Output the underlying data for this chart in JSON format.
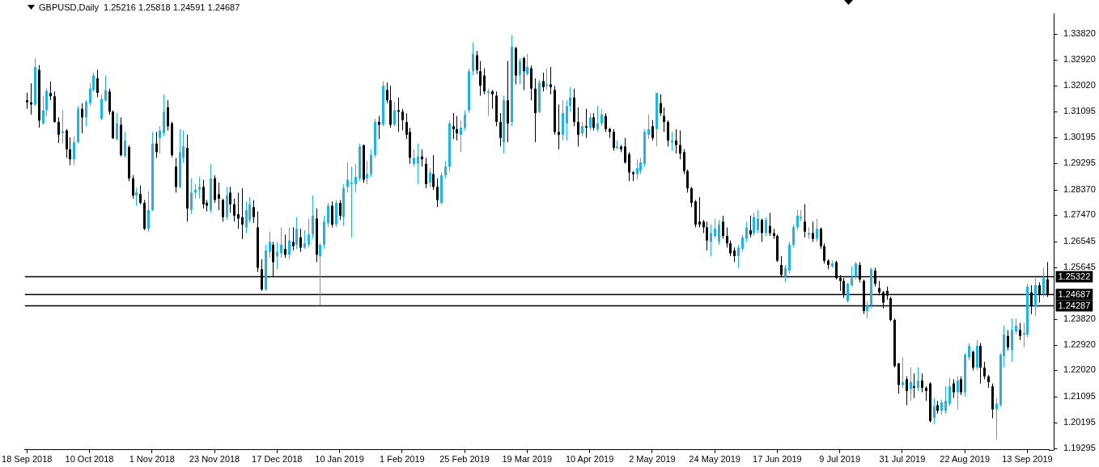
{
  "chart_data": {
    "type": "candlestick",
    "title": "GBPUSD,Daily  1.25216 1.25818 1.24591 1.24687",
    "categories": [
      "18 Sep 2018",
      null,
      null,
      null,
      null,
      null,
      null,
      null,
      null,
      null,
      null,
      null,
      null,
      null,
      null,
      null,
      "10 Oct 2018",
      null,
      null,
      null,
      null,
      null,
      null,
      null,
      null,
      null,
      null,
      null,
      null,
      null,
      null,
      null,
      "1 Nov 2018",
      null,
      null,
      null,
      null,
      null,
      null,
      null,
      null,
      null,
      null,
      null,
      null,
      null,
      null,
      null,
      "23 Nov 2018",
      null,
      null,
      null,
      null,
      null,
      null,
      null,
      null,
      null,
      null,
      null,
      null,
      null,
      null,
      null,
      "17 Dec 2018",
      null,
      null,
      null,
      null,
      null,
      null,
      null,
      null,
      null,
      null,
      null,
      null,
      null,
      null,
      null,
      "10 Jan 2019",
      null,
      null,
      null,
      null,
      null,
      null,
      null,
      null,
      null,
      null,
      null,
      null,
      null,
      null,
      null,
      "1 Feb 2019",
      null,
      null,
      null,
      null,
      null,
      null,
      null,
      null,
      null,
      null,
      null,
      null,
      null,
      null,
      null,
      "25 Feb 2019",
      null,
      null,
      null,
      null,
      null,
      null,
      null,
      null,
      null,
      null,
      null,
      null,
      null,
      null,
      null,
      "19 Mar 2019",
      null,
      null,
      null,
      null,
      null,
      null,
      null,
      null,
      null,
      null,
      null,
      null,
      null,
      null,
      null,
      "10 Apr 2019",
      null,
      null,
      null,
      null,
      null,
      null,
      null,
      null,
      null,
      null,
      null,
      null,
      null,
      null,
      null,
      "2 May 2019",
      null,
      null,
      null,
      null,
      null,
      null,
      null,
      null,
      null,
      null,
      null,
      null,
      null,
      null,
      null,
      "24 May 2019",
      null,
      null,
      null,
      null,
      null,
      null,
      null,
      null,
      null,
      null,
      null,
      null,
      null,
      null,
      null,
      "17 Jun 2019",
      null,
      null,
      null,
      null,
      null,
      null,
      null,
      null,
      null,
      null,
      null,
      null,
      null,
      null,
      null,
      "9 Jul 2019",
      null,
      null,
      null,
      null,
      null,
      null,
      null,
      null,
      null,
      null,
      null,
      null,
      null,
      null,
      null,
      "31 Jul 2019",
      null,
      null,
      null,
      null,
      null,
      null,
      null,
      null,
      null,
      null,
      null,
      null,
      null,
      null,
      null,
      "22 Aug 2019",
      null,
      null,
      null,
      null,
      null,
      null,
      null,
      null,
      null,
      null,
      null,
      null,
      null,
      null,
      null,
      "13 Sep 2019",
      null,
      null,
      null,
      null,
      null
    ],
    "ohlc": [
      [
        1.315,
        1.3177,
        1.312,
        1.3143
      ],
      [
        1.3143,
        1.321,
        1.31,
        1.3135
      ],
      [
        1.3135,
        1.3298,
        1.313,
        1.3267
      ],
      [
        1.3257,
        1.3274,
        1.3054,
        1.3079
      ],
      [
        1.3069,
        1.3166,
        1.3064,
        1.3115
      ],
      [
        1.3115,
        1.3193,
        1.3095,
        1.3183
      ],
      [
        1.3176,
        1.3216,
        1.315,
        1.3164
      ],
      [
        1.3164,
        1.3181,
        1.3071,
        1.3074
      ],
      [
        1.3074,
        1.309,
        1.3,
        1.3029
      ],
      [
        1.3036,
        1.3115,
        1.2998,
        1.3041
      ],
      [
        1.3044,
        1.3049,
        1.2948,
        1.2978
      ],
      [
        1.2978,
        1.302,
        1.2922,
        1.2943
      ],
      [
        1.2943,
        1.3024,
        1.2922,
        1.3003
      ],
      [
        1.3003,
        1.313,
        1.2999,
        1.312
      ],
      [
        1.312,
        1.314,
        1.3034,
        1.309
      ],
      [
        1.309,
        1.315,
        1.3059,
        1.3145
      ],
      [
        1.314,
        1.3211,
        1.313,
        1.3191
      ],
      [
        1.3186,
        1.3247,
        1.3181,
        1.3237
      ],
      [
        1.3227,
        1.3257,
        1.3161,
        1.3176
      ],
      [
        1.3085,
        1.3171,
        1.308,
        1.3155
      ],
      [
        1.315,
        1.3237,
        1.3145,
        1.3186
      ],
      [
        1.3181,
        1.3191,
        1.31,
        1.311
      ],
      [
        1.311,
        1.3115,
        1.3014,
        1.3017
      ],
      [
        1.3014,
        1.3105,
        1.3008,
        1.3069
      ],
      [
        1.3064,
        1.309,
        1.2953,
        1.2958
      ],
      [
        1.2955,
        1.3039,
        1.2948,
        1.3008
      ],
      [
        1.2986,
        1.2993,
        1.2866,
        1.2876
      ],
      [
        1.2876,
        1.2887,
        1.2805,
        1.2816
      ],
      [
        1.2816,
        1.2843,
        1.278,
        1.2828
      ],
      [
        1.2821,
        1.2851,
        1.2785,
        1.279
      ],
      [
        1.279,
        1.28,
        1.2694,
        1.2699
      ],
      [
        1.2699,
        1.2831,
        1.2689,
        1.2765
      ],
      [
        1.2765,
        1.3039,
        1.276,
        1.2998
      ],
      [
        1.2998,
        1.3039,
        1.2948,
        1.2968
      ],
      [
        1.3018,
        1.3059,
        1.2963,
        1.3044
      ],
      [
        1.3034,
        1.3171,
        1.3024,
        1.311
      ],
      [
        1.3125,
        1.315,
        1.3044,
        1.3059
      ],
      [
        1.3069,
        1.3075,
        1.295,
        1.2958
      ],
      [
        1.2917,
        1.2948,
        1.2826,
        1.2846
      ],
      [
        1.2846,
        1.3049,
        1.2841,
        1.2968
      ],
      [
        1.2948,
        1.3044,
        1.293,
        1.2988
      ],
      [
        1.2983,
        1.3029,
        1.2724,
        1.277
      ],
      [
        1.2765,
        1.2876,
        1.275,
        1.2826
      ],
      [
        1.2826,
        1.2856,
        1.2805,
        1.2836
      ],
      [
        1.2836,
        1.2881,
        1.2805,
        1.2846
      ],
      [
        1.2846,
        1.2871,
        1.277,
        1.2785
      ],
      [
        1.279,
        1.28,
        1.276,
        1.278
      ],
      [
        1.2765,
        1.2927,
        1.2755,
        1.2876
      ],
      [
        1.2876,
        1.2887,
        1.279,
        1.28
      ],
      [
        1.282,
        1.2861,
        1.2765,
        1.2805
      ],
      [
        1.28,
        1.2805,
        1.2724,
        1.274
      ],
      [
        1.274,
        1.2846,
        1.273,
        1.2816
      ],
      [
        1.2826,
        1.2846,
        1.2755,
        1.2785
      ],
      [
        1.2785,
        1.2805,
        1.2724,
        1.2745
      ],
      [
        1.275,
        1.2826,
        1.2699,
        1.2735
      ],
      [
        1.274,
        1.2841,
        1.2663,
        1.2714
      ],
      [
        1.2704,
        1.2795,
        1.2684,
        1.2765
      ],
      [
        1.2729,
        1.281,
        1.272,
        1.2785
      ],
      [
        1.2775,
        1.28,
        1.272,
        1.274
      ],
      [
        1.2704,
        1.276,
        1.2547,
        1.2562
      ],
      [
        1.2557,
        1.2592,
        1.2481,
        1.2486
      ],
      [
        1.2486,
        1.2643,
        1.2481,
        1.2623
      ],
      [
        1.2618,
        1.2689,
        1.2597,
        1.2653
      ],
      [
        1.2643,
        1.2653,
        1.2531,
        1.2582
      ],
      [
        1.2602,
        1.2653,
        1.2557,
        1.2618
      ],
      [
        1.2613,
        1.2704,
        1.2597,
        1.2643
      ],
      [
        1.2628,
        1.2679,
        1.2597,
        1.2608
      ],
      [
        1.2608,
        1.2704,
        1.2592,
        1.2658
      ],
      [
        1.2653,
        1.2704,
        1.2623,
        1.2638
      ],
      [
        1.2643,
        1.274,
        1.2628,
        1.2699
      ],
      [
        1.2669,
        1.2699,
        1.2618,
        1.2633
      ],
      [
        1.2633,
        1.2694,
        1.2628,
        1.2648
      ],
      [
        1.2643,
        1.2735,
        1.2633,
        1.2679
      ],
      [
        1.2679,
        1.2816,
        1.2664,
        1.2745
      ],
      [
        1.2735,
        1.277,
        1.2582,
        1.2608
      ],
      [
        1.2603,
        1.2648,
        1.243,
        1.2643
      ],
      [
        1.2643,
        1.2745,
        1.2628,
        1.2724
      ],
      [
        1.2719,
        1.279,
        1.2704,
        1.278
      ],
      [
        1.278,
        1.2795,
        1.2704,
        1.2714
      ],
      [
        1.2714,
        1.28,
        1.2704,
        1.279
      ],
      [
        1.279,
        1.28,
        1.273,
        1.2745
      ],
      [
        1.274,
        1.2856,
        1.2709,
        1.2841
      ],
      [
        1.2846,
        1.2932,
        1.2826,
        1.2871
      ],
      [
        1.2856,
        1.2917,
        1.2668,
        1.2861
      ],
      [
        1.2856,
        1.2927,
        1.2826,
        1.2881
      ],
      [
        1.2876,
        1.2998,
        1.2866,
        1.2988
      ],
      [
        1.2993,
        1.2993,
        1.286,
        1.2871
      ],
      [
        1.2876,
        1.2937,
        1.2855,
        1.2891
      ],
      [
        1.2891,
        1.2978,
        1.288,
        1.2958
      ],
      [
        1.2958,
        1.3085,
        1.2948,
        1.3074
      ],
      [
        1.3074,
        1.3095,
        1.3014,
        1.3064
      ],
      [
        1.3064,
        1.3217,
        1.3059,
        1.3201
      ],
      [
        1.3186,
        1.3212,
        1.314,
        1.315
      ],
      [
        1.315,
        1.3201,
        1.3054,
        1.3064
      ],
      [
        1.3064,
        1.3145,
        1.3059,
        1.3115
      ],
      [
        1.3115,
        1.316,
        1.3039,
        1.311
      ],
      [
        1.311,
        1.312,
        1.3044,
        1.308
      ],
      [
        1.3074,
        1.3105,
        1.3014,
        1.3029
      ],
      [
        1.3039,
        1.3054,
        1.2927,
        1.2948
      ],
      [
        1.2927,
        1.2978,
        1.2917,
        1.2948
      ],
      [
        1.2927,
        1.2998,
        1.2856,
        1.2953
      ],
      [
        1.2953,
        1.2978,
        1.2917,
        1.2943
      ],
      [
        1.2927,
        1.2948,
        1.2841,
        1.2856
      ],
      [
        1.2861,
        1.2912,
        1.2846,
        1.2897
      ],
      [
        1.2891,
        1.2958,
        1.2836,
        1.2846
      ],
      [
        1.2846,
        1.2876,
        1.2775,
        1.28
      ],
      [
        1.279,
        1.2897,
        1.2785,
        1.2887
      ],
      [
        1.2887,
        1.2937,
        1.2876,
        1.2917
      ],
      [
        1.2917,
        1.308,
        1.29,
        1.3069
      ],
      [
        1.3059,
        1.3105,
        1.3014,
        1.3049
      ],
      [
        1.3049,
        1.3095,
        1.3009,
        1.3034
      ],
      [
        1.3029,
        1.308,
        1.2968,
        1.3054
      ],
      [
        1.3054,
        1.3115,
        1.3044,
        1.31
      ],
      [
        1.3115,
        1.3262,
        1.3105,
        1.3252
      ],
      [
        1.3252,
        1.3353,
        1.3237,
        1.3313
      ],
      [
        1.3308,
        1.3323,
        1.3242,
        1.3257
      ],
      [
        1.3252,
        1.3288,
        1.3166,
        1.3201
      ],
      [
        1.3237,
        1.3262,
        1.3171,
        1.3181
      ],
      [
        1.3176,
        1.3191,
        1.3095,
        1.3181
      ],
      [
        1.3181,
        1.3186,
        1.312,
        1.3171
      ],
      [
        1.3166,
        1.3181,
        1.3059,
        1.3074
      ],
      [
        1.3074,
        1.3105,
        1.2988,
        1.3018
      ],
      [
        1.3003,
        1.3166,
        1.2963,
        1.315
      ],
      [
        1.315,
        1.3288,
        1.3003,
        1.3069
      ],
      [
        1.3074,
        1.3379,
        1.3059,
        1.3338
      ],
      [
        1.3333,
        1.3338,
        1.3206,
        1.3237
      ],
      [
        1.3237,
        1.3298,
        1.3206,
        1.3288
      ],
      [
        1.3298,
        1.3303,
        1.3186,
        1.3252
      ],
      [
        1.3242,
        1.3313,
        1.3237,
        1.3267
      ],
      [
        1.3262,
        1.3272,
        1.315,
        1.3191
      ],
      [
        1.3191,
        1.3227,
        1.3003,
        1.3105
      ],
      [
        1.311,
        1.3222,
        1.3105,
        1.3212
      ],
      [
        1.3217,
        1.3247,
        1.3181,
        1.3196
      ],
      [
        1.3201,
        1.3262,
        1.3186,
        1.3206
      ],
      [
        1.3206,
        1.3267,
        1.3171,
        1.3196
      ],
      [
        1.3186,
        1.3201,
        1.3029,
        1.3039
      ],
      [
        1.3039,
        1.3135,
        1.2978,
        1.3029
      ],
      [
        1.3029,
        1.315,
        1.3009,
        1.3105
      ],
      [
        1.3069,
        1.315,
        1.3009,
        1.313
      ],
      [
        1.313,
        1.3196,
        1.311,
        1.316
      ],
      [
        1.316,
        1.3191,
        1.3059,
        1.3074
      ],
      [
        1.3074,
        1.3125,
        1.2988,
        1.3029
      ],
      [
        1.3034,
        1.3074,
        1.3024,
        1.3059
      ],
      [
        1.3059,
        1.312,
        1.3018,
        1.3054
      ],
      [
        1.3054,
        1.3105,
        1.3044,
        1.309
      ],
      [
        1.309,
        1.3105,
        1.3044,
        1.3054
      ],
      [
        1.3049,
        1.313,
        1.3039,
        1.3069
      ],
      [
        1.3069,
        1.312,
        1.3059,
        1.31
      ],
      [
        1.3095,
        1.3105,
        1.3039,
        1.3049
      ],
      [
        1.3049,
        1.3054,
        1.3018,
        1.3039
      ],
      [
        1.3039,
        1.3049,
        1.2973,
        1.2983
      ],
      [
        1.2983,
        1.3009,
        1.2978,
        1.2988
      ],
      [
        1.2988,
        1.2993,
        1.2968,
        1.2978
      ],
      [
        1.2988,
        1.3018,
        1.2927,
        1.2932
      ],
      [
        1.2961,
        1.2968,
        1.2866,
        1.2897
      ],
      [
        1.2897,
        1.2902,
        1.2866,
        1.2891
      ],
      [
        1.2891,
        1.2942,
        1.2871,
        1.2912
      ],
      [
        1.2902,
        1.2948,
        1.2891,
        1.2932
      ],
      [
        1.2927,
        1.3049,
        1.2917,
        1.3039
      ],
      [
        1.3029,
        1.31,
        1.3014,
        1.3049
      ],
      [
        1.3059,
        1.308,
        1.3009,
        1.3018
      ],
      [
        1.3049,
        1.3176,
        1.2988,
        1.3176
      ],
      [
        1.314,
        1.3171,
        1.3095,
        1.3105
      ],
      [
        1.3095,
        1.3125,
        1.3039,
        1.3074
      ],
      [
        1.3074,
        1.308,
        1.2988,
        1.3009
      ],
      [
        1.3003,
        1.3039,
        1.2973,
        1.3009
      ],
      [
        1.3009,
        1.3049,
        1.2963,
        1.2993
      ],
      [
        1.2993,
        1.3044,
        1.2943,
        1.2963
      ],
      [
        1.2968,
        1.2978,
        1.2891,
        1.2902
      ],
      [
        1.2902,
        1.2907,
        1.2826,
        1.2841
      ],
      [
        1.2841,
        1.2846,
        1.2775,
        1.279
      ],
      [
        1.2795,
        1.28,
        1.2704,
        1.2714
      ],
      [
        1.2724,
        1.281,
        1.2704,
        1.2714
      ],
      [
        1.2724,
        1.273,
        1.2684,
        1.2704
      ],
      [
        1.2704,
        1.2724,
        1.2623,
        1.2658
      ],
      [
        1.2653,
        1.2714,
        1.2603,
        1.2684
      ],
      [
        1.2674,
        1.2735,
        1.2664,
        1.2699
      ],
      [
        1.2653,
        1.273,
        1.2643,
        1.2714
      ],
      [
        1.2724,
        1.2745,
        1.2664,
        1.2674
      ],
      [
        1.2674,
        1.2704,
        1.2633,
        1.2648
      ],
      [
        1.2648,
        1.2658,
        1.2603,
        1.2613
      ],
      [
        1.2623,
        1.2633,
        1.2582,
        1.2603
      ],
      [
        1.2603,
        1.2643,
        1.2562,
        1.2633
      ],
      [
        1.2628,
        1.2679,
        1.2618,
        1.2669
      ],
      [
        1.2664,
        1.2724,
        1.2653,
        1.2704
      ],
      [
        1.2694,
        1.2745,
        1.2669,
        1.2679
      ],
      [
        1.2684,
        1.2755,
        1.2674,
        1.274
      ],
      [
        1.2694,
        1.2765,
        1.2684,
        1.2735
      ],
      [
        1.273,
        1.2735,
        1.2653,
        1.2684
      ],
      [
        1.2684,
        1.274,
        1.2674,
        1.273
      ],
      [
        1.2709,
        1.2755,
        1.2674,
        1.2684
      ],
      [
        1.2684,
        1.2699,
        1.2664,
        1.2674
      ],
      [
        1.2674,
        1.2679,
        1.2582,
        1.2587
      ],
      [
        1.2572,
        1.2603,
        1.2532,
        1.2537
      ],
      [
        1.2531,
        1.2572,
        1.2511,
        1.2562
      ],
      [
        1.2552,
        1.2653,
        1.2542,
        1.2643
      ],
      [
        1.2643,
        1.2714,
        1.2633,
        1.2704
      ],
      [
        1.2704,
        1.2765,
        1.2694,
        1.2745
      ],
      [
        1.2735,
        1.2765,
        1.2724,
        1.274
      ],
      [
        1.2724,
        1.2785,
        1.2669,
        1.2689
      ],
      [
        1.2679,
        1.2704,
        1.2664,
        1.2684
      ],
      [
        1.2684,
        1.2724,
        1.2653,
        1.2664
      ],
      [
        1.2664,
        1.2735,
        1.2653,
        1.2699
      ],
      [
        1.2699,
        1.2704,
        1.2628,
        1.2638
      ],
      [
        1.2638,
        1.2648,
        1.2577,
        1.2587
      ],
      [
        1.2587,
        1.2592,
        1.2557,
        1.2572
      ],
      [
        1.2567,
        1.2587,
        1.2562,
        1.2577
      ],
      [
        1.2582,
        1.2587,
        1.2521,
        1.2526
      ],
      [
        1.2526,
        1.2537,
        1.2481,
        1.2516
      ],
      [
        1.2516,
        1.2526,
        1.2456,
        1.2471
      ],
      [
        1.2445,
        1.2511,
        1.244,
        1.2506
      ],
      [
        1.2501,
        1.2567,
        1.2496,
        1.2526
      ],
      [
        1.2531,
        1.2582,
        1.2521,
        1.2577
      ],
      [
        1.2572,
        1.2582,
        1.2511,
        1.2521
      ],
      [
        1.2516,
        1.2521,
        1.24,
        1.241
      ],
      [
        1.241,
        1.2445,
        1.2384,
        1.243
      ],
      [
        1.243,
        1.2562,
        1.242,
        1.2557
      ],
      [
        1.2552,
        1.2562,
        1.2496,
        1.2506
      ],
      [
        1.2491,
        1.2516,
        1.2466,
        1.2476
      ],
      [
        1.2476,
        1.2481,
        1.242,
        1.244
      ],
      [
        1.2481,
        1.2496,
        1.245,
        1.2465
      ],
      [
        1.2455,
        1.246,
        1.2374,
        1.2379
      ],
      [
        1.2379,
        1.2384,
        1.2212,
        1.2217
      ],
      [
        1.2227,
        1.2227,
        1.212,
        1.2151
      ],
      [
        1.2151,
        1.2247,
        1.2141,
        1.2161
      ],
      [
        1.2171,
        1.2181,
        1.208,
        1.213
      ],
      [
        1.2136,
        1.2212,
        1.2095,
        1.2161
      ],
      [
        1.2146,
        1.2191,
        1.2105,
        1.2141
      ],
      [
        1.2141,
        1.2212,
        1.213,
        1.2166
      ],
      [
        1.2166,
        1.2191,
        1.2125,
        1.2141
      ],
      [
        1.2141,
        1.2146,
        1.2095,
        1.213
      ],
      [
        1.2156,
        1.2161,
        1.2019,
        1.2024
      ],
      [
        1.2034,
        1.2105,
        1.2014,
        1.2075
      ],
      [
        1.208,
        1.2095,
        1.205,
        1.206
      ],
      [
        1.206,
        1.21,
        1.2045,
        1.209
      ],
      [
        1.206,
        1.2146,
        1.205,
        1.2095
      ],
      [
        1.2085,
        1.2176,
        1.2075,
        1.2146
      ],
      [
        1.2156,
        1.2171,
        1.2105,
        1.2125
      ],
      [
        1.2125,
        1.2181,
        1.2065,
        1.2166
      ],
      [
        1.2171,
        1.2181,
        1.2115,
        1.2125
      ],
      [
        1.2125,
        1.2262,
        1.211,
        1.2257
      ],
      [
        1.2247,
        1.2298,
        1.2237,
        1.2288
      ],
      [
        1.2267,
        1.2272,
        1.2202,
        1.2212
      ],
      [
        1.2212,
        1.2308,
        1.2202,
        1.2288
      ],
      [
        1.2288,
        1.2298,
        1.2156,
        1.2212
      ],
      [
        1.2212,
        1.2232,
        1.2171,
        1.2181
      ],
      [
        1.2181,
        1.2186,
        1.2141,
        1.2161
      ],
      [
        1.2146,
        1.2156,
        1.2034,
        1.2065
      ],
      [
        1.2065,
        1.2105,
        1.1958,
        1.2085
      ],
      [
        1.208,
        1.2262,
        1.2075,
        1.2257
      ],
      [
        1.2252,
        1.2359,
        1.2212,
        1.2328
      ],
      [
        1.2323,
        1.2343,
        1.2272,
        1.2283
      ],
      [
        1.2272,
        1.2384,
        1.2232,
        1.2344
      ],
      [
        1.2338,
        1.2384,
        1.2328,
        1.2359
      ],
      [
        1.2344,
        1.2369,
        1.2308,
        1.2323
      ],
      [
        1.2328,
        1.2369,
        1.2283,
        1.2333
      ],
      [
        1.2328,
        1.2506,
        1.2318,
        1.2496
      ],
      [
        1.2476,
        1.2501,
        1.2399,
        1.243
      ],
      [
        1.2425,
        1.2526,
        1.2394,
        1.2501
      ],
      [
        1.2501,
        1.2511,
        1.244,
        1.247
      ],
      [
        1.247,
        1.2562,
        1.246,
        1.2526
      ],
      [
        1.25216,
        1.25818,
        1.24591,
        1.24687
      ]
    ],
    "colors": [
      "#000000",
      "#000000",
      "#1eb4e6",
      "#000000",
      "#1eb4e6",
      "#1eb4e6",
      "#000000",
      "#000000",
      "#000000",
      "#1eb4e6",
      "#000000",
      "#000000",
      "#1eb4e6",
      "#1eb4e6",
      "#000000",
      "#1eb4e6",
      "#1eb4e6",
      "#1eb4e6",
      "#000000",
      "#1eb4e6",
      "#1eb4e6",
      "#000000",
      "#000000",
      "#1eb4e6",
      "#000000",
      "#1eb4e6",
      "#000000",
      "#000000",
      "#1eb4e6",
      "#000000",
      "#000000",
      "#1eb4e6",
      "#1eb4e6",
      "#000000",
      "#1eb4e6",
      "#1eb4e6",
      "#000000",
      "#000000",
      "#000000",
      "#1eb4e6",
      "#1eb4e6",
      "#000000",
      "#1eb4e6",
      "#1eb4e6",
      "#1eb4e6",
      "#000000",
      "#000000",
      "#1eb4e6",
      "#000000",
      "#000000",
      "#000000",
      "#1eb4e6",
      "#000000",
      "#000000",
      "#000000",
      "#000000",
      "#1eb4e6",
      "#1eb4e6",
      "#000000",
      "#000000",
      "#000000",
      "#1eb4e6",
      "#1eb4e6",
      "#000000",
      "#1eb4e6",
      "#1eb4e6",
      "#000000",
      "#1eb4e6",
      "#000000",
      "#1eb4e6",
      "#000000",
      "#1eb4e6",
      "#1eb4e6",
      "#1eb4e6",
      "#000000",
      "#1eb4e6",
      "#1eb4e6",
      "#1eb4e6",
      "#000000",
      "#1eb4e6",
      "#000000",
      "#1eb4e6",
      "#1eb4e6",
      "#1eb4e6",
      "#1eb4e6",
      "#1eb4e6",
      "#000000",
      "#1eb4e6",
      "#1eb4e6",
      "#1eb4e6",
      "#000000",
      "#1eb4e6",
      "#000000",
      "#000000",
      "#1eb4e6",
      "#000000",
      "#000000",
      "#000000",
      "#000000",
      "#1eb4e6",
      "#1eb4e6",
      "#000000",
      "#000000",
      "#1eb4e6",
      "#000000",
      "#000000",
      "#1eb4e6",
      "#1eb4e6",
      "#1eb4e6",
      "#000000",
      "#000000",
      "#1eb4e6",
      "#1eb4e6",
      "#1eb4e6",
      "#1eb4e6",
      "#000000",
      "#000000",
      "#000000",
      "#1eb4e6",
      "#000000",
      "#000000",
      "#000000",
      "#1eb4e6",
      "#000000",
      "#1eb4e6",
      "#000000",
      "#1eb4e6",
      "#000000",
      "#1eb4e6",
      "#000000",
      "#000000",
      "#1eb4e6",
      "#000000",
      "#1eb4e6",
      "#000000",
      "#000000",
      "#000000",
      "#1eb4e6",
      "#1eb4e6",
      "#1eb4e6",
      "#000000",
      "#000000",
      "#1eb4e6",
      "#000000",
      "#1eb4e6",
      "#000000",
      "#1eb4e6",
      "#1eb4e6",
      "#000000",
      "#000000",
      "#000000",
      "#1eb4e6",
      "#000000",
      "#000000",
      "#000000",
      "#000000",
      "#1eb4e6",
      "#1eb4e6",
      "#1eb4e6",
      "#1eb4e6",
      "#000000",
      "#1eb4e6",
      "#000000",
      "#000000",
      "#000000",
      "#1eb4e6",
      "#000000",
      "#000000",
      "#000000",
      "#000000",
      "#000000",
      "#000000",
      "#000000",
      "#000000",
      "#000000",
      "#1eb4e6",
      "#1eb4e6",
      "#1eb4e6",
      "#000000",
      "#000000",
      "#000000",
      "#000000",
      "#1eb4e6",
      "#1eb4e6",
      "#1eb4e6",
      "#000000",
      "#1eb4e6",
      "#1eb4e6",
      "#000000",
      "#1eb4e6",
      "#000000",
      "#000000",
      "#000000",
      "#000000",
      "#1eb4e6",
      "#1eb4e6",
      "#1eb4e6",
      "#1eb4e6",
      "#1eb4e6",
      "#000000",
      "#1eb4e6",
      "#000000",
      "#1eb4e6",
      "#000000",
      "#000000",
      "#000000",
      "#1eb4e6",
      "#000000",
      "#000000",
      "#000000",
      "#1eb4e6",
      "#1eb4e6",
      "#1eb4e6",
      "#000000",
      "#000000",
      "#1eb4e6",
      "#1eb4e6",
      "#000000",
      "#000000",
      "#000000",
      "#000000",
      "#000000",
      "#000000",
      "#000000",
      "#1eb4e6",
      "#000000",
      "#1eb4e6",
      "#000000",
      "#1eb4e6",
      "#000000",
      "#000000",
      "#000000",
      "#1eb4e6",
      "#000000",
      "#1eb4e6",
      "#1eb4e6",
      "#1eb4e6",
      "#000000",
      "#1eb4e6",
      "#000000",
      "#1eb4e6",
      "#1eb4e6",
      "#000000",
      "#1eb4e6",
      "#000000",
      "#000000",
      "#000000",
      "#000000",
      "#1eb4e6",
      "#1eb4e6",
      "#1eb4e6",
      "#000000",
      "#1eb4e6",
      "#1eb4e6",
      "#000000",
      "#1eb4e6",
      "#1eb4e6",
      "#000000",
      "#1eb4e6",
      "#000000",
      "#1eb4e6",
      "#000000"
    ],
    "ylim": [
      1.1923,
      1.3455
    ],
    "yticks": [
      {
        "value": 1.3382,
        "label": "1.33820"
      },
      {
        "value": 1.3292,
        "label": "1.32920"
      },
      {
        "value": 1.3202,
        "label": "1.32020"
      },
      {
        "value": 1.31095,
        "label": "1.31095"
      },
      {
        "value": 1.30195,
        "label": "1.30195"
      },
      {
        "value": 1.29295,
        "label": "1.29295"
      },
      {
        "value": 1.2837,
        "label": "1.28370"
      },
      {
        "value": 1.2747,
        "label": "1.27470"
      },
      {
        "value": 1.26545,
        "label": "1.26545"
      },
      {
        "value": 1.25645,
        "label": "1.25645"
      },
      {
        "value": 1.2382,
        "label": "1.23820"
      },
      {
        "value": 1.2292,
        "label": "1.22920"
      },
      {
        "value": 1.2202,
        "label": "1.22020"
      },
      {
        "value": 1.21095,
        "label": "1.21095"
      },
      {
        "value": 1.20195,
        "label": "1.20195"
      },
      {
        "value": 1.19295,
        "label": "1.19295"
      }
    ],
    "ref_lines": [
      {
        "axis": "y",
        "value": 1.25322,
        "label": "1.25322",
        "color": "#000000"
      },
      {
        "axis": "y",
        "value": 1.24687,
        "label": "1.24687",
        "color": "#000000"
      },
      {
        "axis": "y",
        "value": 1.24287,
        "label": "1.24287",
        "color": "#000000"
      }
    ]
  }
}
